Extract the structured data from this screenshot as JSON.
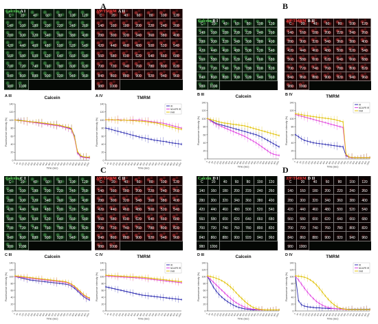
{
  "panels": [
    {
      "letter": "A",
      "sub": {
        "g": "A I",
        "r": "A II",
        "c1": "A III",
        "c2": "A IV"
      }
    },
    {
      "letter": "B",
      "sub": {
        "g": "B I",
        "r": "B II",
        "c1": "B III",
        "c2": "B IV"
      }
    },
    {
      "letter": "C",
      "sub": {
        "g": "C I",
        "r": "C II",
        "c1": "C III",
        "c2": "C IV"
      }
    },
    {
      "letter": "D",
      "sub": {
        "g": "D I",
        "r": "D II",
        "c1": "D III",
        "c2": "D IV"
      }
    }
  ],
  "labels": {
    "green": "Calcein",
    "red": "ΔΨ/TMRM"
  },
  "grid_cells": [
    "C",
    "20",
    "40",
    "60",
    "80",
    "100",
    "120",
    "140",
    "160",
    "180",
    "200",
    "220",
    "240",
    "260",
    "280",
    "300",
    "320",
    "340",
    "360",
    "380",
    "400",
    "420",
    "440",
    "460",
    "480",
    "500",
    "520",
    "540",
    "560",
    "580",
    "600",
    "620",
    "640",
    "660",
    "680",
    "700",
    "720",
    "740",
    "760",
    "780",
    "800",
    "820",
    "840",
    "860",
    "880",
    "900",
    "920",
    "940",
    "960",
    "980",
    "1000"
  ],
  "colors": {
    "IR": "#2b2bb0",
    "NDAPR": "#e040e0",
    "FAR": "#e0c000",
    "green": "#5ee05e",
    "red": "#ff4040"
  },
  "legend": [
    "IR",
    "NDAPR IR",
    "FAR"
  ],
  "chart_data": [
    {
      "id": "A III",
      "type": "line",
      "title": "Calcein",
      "ylabel": "Fluorescence intensity (%)",
      "xlabel": "Time (sec)",
      "ylim": [
        0,
        140
      ],
      "yticks": [
        0,
        20,
        40,
        60,
        80,
        100,
        120,
        140
      ],
      "x": [
        0,
        40,
        80,
        120,
        160,
        200,
        240,
        280,
        320,
        360,
        400,
        440,
        480,
        520,
        560,
        600,
        640,
        680,
        720,
        760,
        800,
        840,
        880,
        920,
        960,
        1000
      ],
      "series": [
        {
          "name": "IR",
          "color": "#2b2bb0",
          "values": [
            100,
            100,
            99,
            98,
            97,
            96,
            95,
            94,
            93,
            92,
            91,
            90,
            89,
            88,
            88,
            86,
            84,
            82,
            80,
            78,
            60,
            20,
            10,
            8,
            7,
            7
          ]
        },
        {
          "name": "NDAPR IR",
          "color": "#e040e0",
          "values": [
            100,
            99,
            98,
            97,
            96,
            95,
            94,
            93,
            92,
            91,
            90,
            89,
            88,
            87,
            86,
            85,
            83,
            81,
            79,
            76,
            55,
            18,
            9,
            7,
            6,
            6
          ]
        },
        {
          "name": "FAR",
          "color": "#e0c000",
          "values": [
            100,
            99,
            98,
            98,
            97,
            96,
            95,
            95,
            94,
            93,
            92,
            91,
            90,
            89,
            88,
            87,
            85,
            83,
            82,
            79,
            58,
            22,
            12,
            9,
            8,
            8
          ]
        }
      ],
      "legend": false
    },
    {
      "id": "A IV",
      "type": "line",
      "title": "TMRM",
      "ylabel": "Fluorescence intensity (%)",
      "xlabel": "Time (sec)",
      "ylim": [
        0,
        140
      ],
      "yticks": [
        0,
        20,
        40,
        60,
        80,
        100,
        120,
        140
      ],
      "x": [
        0,
        40,
        80,
        120,
        160,
        200,
        240,
        280,
        320,
        360,
        400,
        440,
        480,
        520,
        560,
        600,
        640,
        680,
        720,
        760,
        800,
        840,
        880,
        920,
        960,
        1000
      ],
      "series": [
        {
          "name": "IR",
          "color": "#2b2bb0",
          "values": [
            80,
            78,
            76,
            74,
            72,
            70,
            68,
            66,
            64,
            62,
            60,
            58,
            56,
            55,
            53,
            52,
            50,
            49,
            48,
            47,
            46,
            44,
            43,
            42,
            41,
            40
          ]
        },
        {
          "name": "NDAPR IR",
          "color": "#e040e0",
          "values": [
            100,
            101,
            100,
            100,
            101,
            100,
            100,
            99,
            100,
            100,
            99,
            100,
            99,
            98,
            97,
            96,
            95,
            94,
            93,
            92,
            90,
            88,
            86,
            84,
            82,
            80
          ]
        },
        {
          "name": "FAR",
          "color": "#e0c000",
          "values": [
            101,
            100,
            101,
            100,
            100,
            99,
            100,
            99,
            99,
            98,
            98,
            97,
            97,
            96,
            95,
            94,
            93,
            92,
            90,
            88,
            86,
            84,
            82,
            80,
            78,
            77
          ]
        }
      ],
      "legend": true
    },
    {
      "id": "B III",
      "type": "line",
      "title": "Calcein",
      "ylabel": "Fluorescence intensity (%)",
      "xlabel": "Time (sec)",
      "ylim": [
        0,
        140
      ],
      "yticks": [
        0,
        20,
        40,
        60,
        80,
        100,
        120,
        140
      ],
      "x": [
        0,
        40,
        80,
        120,
        160,
        200,
        240,
        280,
        320,
        360,
        400,
        440,
        480,
        520,
        560,
        600,
        640,
        680,
        720,
        760,
        800,
        840,
        880,
        920,
        960,
        1000
      ],
      "series": [
        {
          "name": "IR",
          "color": "#2b2bb0",
          "values": [
            100,
            96,
            92,
            88,
            86,
            84,
            82,
            80,
            78,
            76,
            74,
            72,
            70,
            68,
            66,
            64,
            62,
            60,
            57,
            54,
            50,
            46,
            42,
            38,
            34,
            30
          ]
        },
        {
          "name": "NDAPR IR",
          "color": "#e040e0",
          "values": [
            100,
            95,
            90,
            86,
            83,
            80,
            77,
            74,
            71,
            68,
            65,
            62,
            59,
            56,
            52,
            48,
            44,
            40,
            35,
            30,
            25,
            20,
            15,
            12,
            10,
            9
          ]
        },
        {
          "name": "FAR",
          "color": "#e0c000",
          "values": [
            100,
            98,
            96,
            94,
            92,
            90,
            89,
            88,
            87,
            86,
            85,
            84,
            83,
            82,
            80,
            78,
            76,
            74,
            72,
            70,
            68,
            66,
            64,
            62,
            60,
            58
          ]
        }
      ],
      "legend": false
    },
    {
      "id": "B IV",
      "type": "line",
      "title": "TMRM",
      "ylabel": "Fluorescence intensity (%)",
      "xlabel": "Time (sec)",
      "ylim": [
        0,
        140
      ],
      "yticks": [
        0,
        20,
        40,
        60,
        80,
        100,
        120,
        140
      ],
      "x": [
        0,
        40,
        80,
        120,
        160,
        200,
        240,
        280,
        320,
        360,
        400,
        440,
        480,
        520,
        560,
        600,
        640,
        680,
        720,
        760,
        800,
        840,
        880,
        920,
        960,
        1000
      ],
      "series": [
        {
          "name": "IR",
          "color": "#2b2bb0",
          "values": [
            60,
            55,
            50,
            46,
            44,
            42,
            40,
            39,
            38,
            37,
            36,
            35,
            34,
            33,
            32,
            31,
            30,
            8,
            4,
            3,
            3,
            3,
            3,
            3,
            3,
            3
          ]
        },
        {
          "name": "NDAPR IR",
          "color": "#e040e0",
          "values": [
            110,
            108,
            106,
            104,
            102,
            100,
            98,
            96,
            94,
            92,
            90,
            88,
            86,
            84,
            82,
            80,
            78,
            10,
            4,
            3,
            3,
            3,
            3,
            3,
            3,
            3
          ]
        },
        {
          "name": "FAR",
          "color": "#e0c000",
          "values": [
            112,
            111,
            110,
            108,
            107,
            106,
            105,
            104,
            103,
            102,
            101,
            100,
            99,
            98,
            96,
            94,
            92,
            12,
            5,
            4,
            3,
            3,
            3,
            3,
            3,
            3
          ]
        }
      ],
      "legend": true
    },
    {
      "id": "C III",
      "type": "line",
      "title": "Calcein",
      "ylabel": "Fluorescence intensity (%)",
      "xlabel": "Time (sec)",
      "ylim": [
        0,
        140
      ],
      "yticks": [
        0,
        20,
        40,
        60,
        80,
        100,
        120,
        140
      ],
      "x": [
        0,
        40,
        80,
        120,
        160,
        200,
        240,
        280,
        320,
        360,
        400,
        440,
        480,
        520,
        560,
        600,
        640,
        680,
        720,
        760,
        800,
        840,
        880,
        920,
        960,
        1000
      ],
      "series": [
        {
          "name": "IR",
          "color": "#2b2bb0",
          "values": [
            100,
            98,
            96,
            94,
            92,
            90,
            89,
            88,
            87,
            86,
            85,
            84,
            83,
            82,
            81,
            80,
            79,
            78,
            76,
            72,
            66,
            58,
            50,
            42,
            36,
            32
          ]
        },
        {
          "name": "NDAPR IR",
          "color": "#e040e0",
          "values": [
            100,
            99,
            98,
            97,
            96,
            95,
            94,
            93,
            92,
            91,
            90,
            89,
            88,
            87,
            86,
            85,
            84,
            83,
            80,
            76,
            70,
            62,
            54,
            46,
            40,
            36
          ]
        },
        {
          "name": "FAR",
          "color": "#e0c000",
          "values": [
            102,
            101,
            100,
            99,
            98,
            97,
            96,
            95,
            94,
            93,
            92,
            91,
            90,
            89,
            88,
            87,
            86,
            85,
            82,
            78,
            72,
            64,
            56,
            48,
            42,
            38
          ]
        }
      ],
      "legend": false
    },
    {
      "id": "C IV",
      "type": "line",
      "title": "TMRM",
      "ylabel": "Fluorescence intensity (%)",
      "xlabel": "Time (sec)",
      "ylim": [
        0,
        140
      ],
      "yticks": [
        0,
        20,
        40,
        60,
        80,
        100,
        120,
        140
      ],
      "x": [
        0,
        40,
        80,
        120,
        160,
        200,
        240,
        280,
        320,
        360,
        400,
        440,
        480,
        520,
        560,
        600,
        640,
        680,
        720,
        760,
        800,
        840,
        880,
        920,
        960,
        1000
      ],
      "series": [
        {
          "name": "IR",
          "color": "#2b2bb0",
          "values": [
            70,
            68,
            66,
            64,
            62,
            60,
            58,
            56,
            54,
            52,
            50,
            48,
            46,
            45,
            44,
            43,
            42,
            41,
            40,
            39,
            38,
            37,
            36,
            35,
            34,
            33
          ]
        },
        {
          "name": "NDAPR IR",
          "color": "#e040e0",
          "values": [
            102,
            101,
            100,
            100,
            99,
            99,
            98,
            98,
            97,
            97,
            96,
            96,
            95,
            94,
            93,
            92,
            91,
            90,
            89,
            88,
            87,
            86,
            85,
            84,
            83,
            82
          ]
        },
        {
          "name": "FAR",
          "color": "#e0c000",
          "values": [
            104,
            103,
            103,
            102,
            102,
            101,
            101,
            100,
            100,
            99,
            99,
            98,
            98,
            97,
            96,
            95,
            94,
            93,
            92,
            91,
            90,
            89,
            88,
            87,
            86,
            85
          ]
        }
      ],
      "legend": true
    },
    {
      "id": "D III",
      "type": "line",
      "title": "Calcein",
      "ylabel": "Fluorescence intensity (%)",
      "xlabel": "Time (sec)",
      "ylim": [
        0,
        140
      ],
      "yticks": [
        0,
        20,
        40,
        60,
        80,
        100,
        120,
        140
      ],
      "x": [
        0,
        40,
        80,
        120,
        160,
        200,
        240,
        280,
        320,
        360,
        400,
        440,
        480,
        520,
        560,
        600,
        640,
        680,
        720,
        760,
        800,
        840,
        880,
        920,
        960,
        1000
      ],
      "series": [
        {
          "name": "IR",
          "color": "#2b2bb0",
          "values": [
            100,
            85,
            70,
            58,
            48,
            40,
            33,
            27,
            22,
            17,
            13,
            10,
            8,
            6,
            5,
            4,
            3,
            3,
            3,
            3,
            3,
            3,
            3,
            3,
            3,
            3
          ]
        },
        {
          "name": "NDAPR IR",
          "color": "#e040e0",
          "values": [
            100,
            92,
            84,
            76,
            68,
            60,
            52,
            44,
            37,
            30,
            24,
            19,
            15,
            11,
            8,
            6,
            5,
            4,
            3,
            3,
            3,
            3,
            3,
            3,
            3,
            3
          ]
        },
        {
          "name": "FAR",
          "color": "#e0c000",
          "values": [
            102,
            100,
            98,
            95,
            92,
            88,
            83,
            77,
            70,
            62,
            53,
            44,
            36,
            28,
            21,
            15,
            10,
            7,
            5,
            4,
            3,
            3,
            3,
            3,
            3,
            3
          ]
        }
      ],
      "legend": false
    },
    {
      "id": "D IV",
      "type": "line",
      "title": "TMRM",
      "ylabel": "Fluorescence intensity (%)",
      "xlabel": "Time (sec)",
      "ylim": [
        0,
        140
      ],
      "yticks": [
        0,
        20,
        40,
        60,
        80,
        100,
        120,
        140
      ],
      "x": [
        0,
        40,
        80,
        120,
        160,
        200,
        240,
        280,
        320,
        360,
        400,
        440,
        480,
        520,
        560,
        600,
        640,
        680,
        720,
        760,
        800,
        840,
        880,
        920,
        960,
        1000
      ],
      "series": [
        {
          "name": "IR",
          "color": "#2b2bb0",
          "values": [
            100,
            30,
            18,
            14,
            12,
            11,
            10,
            9,
            9,
            8,
            8,
            7,
            7,
            7,
            6,
            6,
            6,
            5,
            5,
            5,
            5,
            5,
            5,
            5,
            5,
            5
          ]
        },
        {
          "name": "NDAPR IR",
          "color": "#e040e0",
          "values": [
            100,
            90,
            78,
            66,
            55,
            45,
            36,
            28,
            22,
            17,
            13,
            10,
            8,
            7,
            6,
            5,
            5,
            4,
            4,
            4,
            4,
            4,
            4,
            4,
            4,
            4
          ]
        },
        {
          "name": "FAR",
          "color": "#e0c000",
          "values": [
            102,
            101,
            100,
            98,
            95,
            90,
            84,
            76,
            66,
            55,
            44,
            34,
            25,
            18,
            12,
            8,
            6,
            5,
            4,
            4,
            4,
            4,
            4,
            4,
            4,
            4
          ]
        }
      ],
      "legend": true
    }
  ]
}
